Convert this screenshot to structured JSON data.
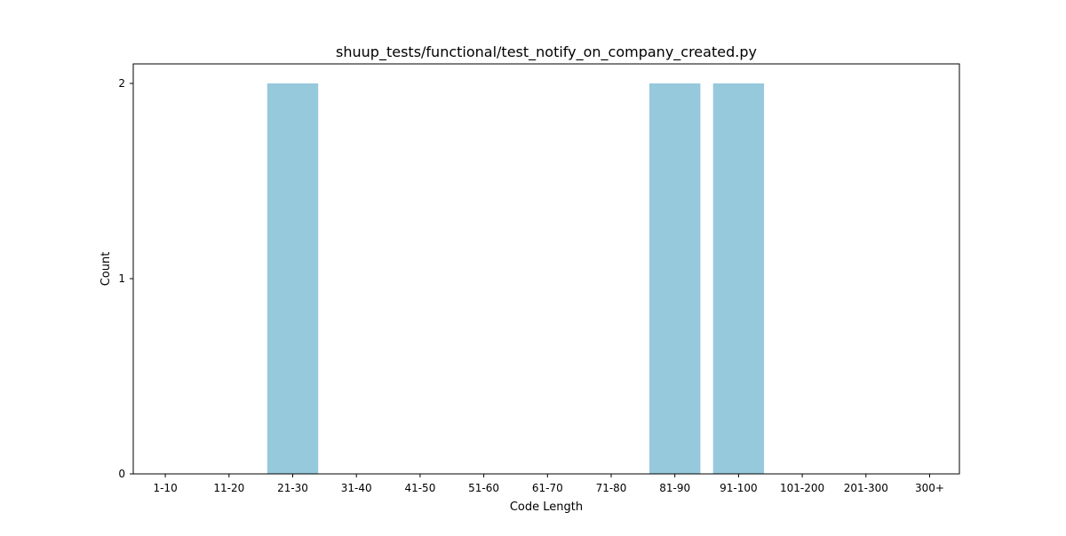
{
  "chart_data": {
    "type": "bar",
    "title": "shuup_tests/functional/test_notify_on_company_created.py",
    "xlabel": "Code Length",
    "ylabel": "Count",
    "categories": [
      "1-10",
      "11-20",
      "21-30",
      "31-40",
      "41-50",
      "51-60",
      "61-70",
      "71-80",
      "81-90",
      "91-100",
      "101-200",
      "201-300",
      "300+"
    ],
    "values": [
      0,
      0,
      2,
      0,
      0,
      0,
      0,
      0,
      2,
      2,
      0,
      0,
      0
    ],
    "ylim": [
      0,
      2.1
    ],
    "yticks": [
      0,
      1,
      2
    ],
    "bar_color": "#96c9dc",
    "grid": false
  }
}
